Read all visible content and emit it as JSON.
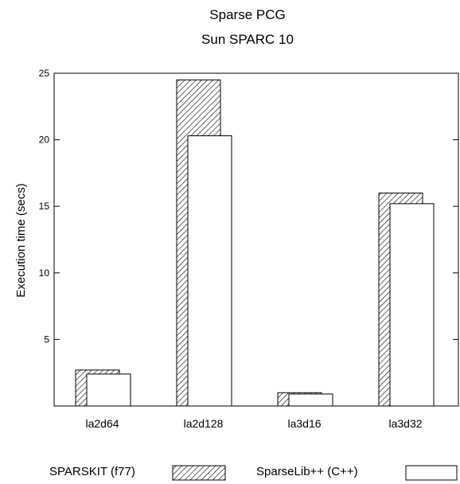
{
  "chart_data": {
    "type": "bar",
    "title": "Sparse PCG",
    "subtitle": "Sun SPARC 10",
    "xlabel": "",
    "ylabel": "Execution time (secs)",
    "categories": [
      "la2d64",
      "la2d128",
      "la3d16",
      "la3d32"
    ],
    "series": [
      {
        "name": "SPARSKIT (f77)",
        "values": [
          2.7,
          24.5,
          1.0,
          16.0
        ],
        "fill": "hatched"
      },
      {
        "name": "SparseLib++ (C++)",
        "values": [
          2.4,
          20.3,
          0.9,
          15.2
        ],
        "fill": "white"
      }
    ],
    "ylim": [
      0,
      25
    ],
    "yticks": [
      5,
      10,
      15,
      20,
      25
    ],
    "grid": false,
    "legend_position": "bottom",
    "colors": {
      "axis": "#000000",
      "background": "#ffffff",
      "bar_fill": "#ffffff"
    }
  }
}
